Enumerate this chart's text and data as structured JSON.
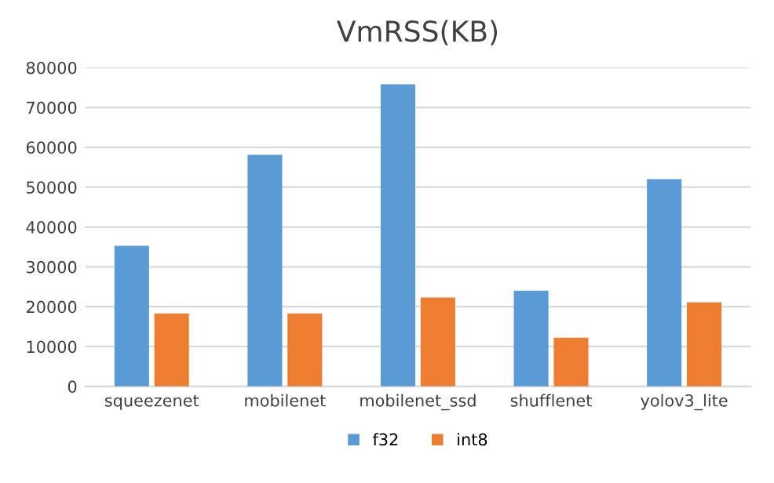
{
  "chart_data": {
    "type": "bar",
    "title": "VmRSS(KB)",
    "categories": [
      "squeezenet",
      "mobilenet",
      "mobilenet_ssd",
      "shufflenet",
      "yolov3_lite"
    ],
    "series": [
      {
        "name": "f32",
        "color": "#5b9bd5",
        "values": [
          35300,
          58100,
          75800,
          24000,
          52000
        ]
      },
      {
        "name": "int8",
        "color": "#ed7d31",
        "values": [
          18300,
          18300,
          22300,
          12200,
          21100
        ]
      }
    ],
    "ylim": [
      0,
      80000
    ],
    "yticks": [
      0,
      10000,
      20000,
      30000,
      40000,
      50000,
      60000,
      70000,
      80000
    ],
    "grid": "y",
    "legend": "bottom"
  }
}
